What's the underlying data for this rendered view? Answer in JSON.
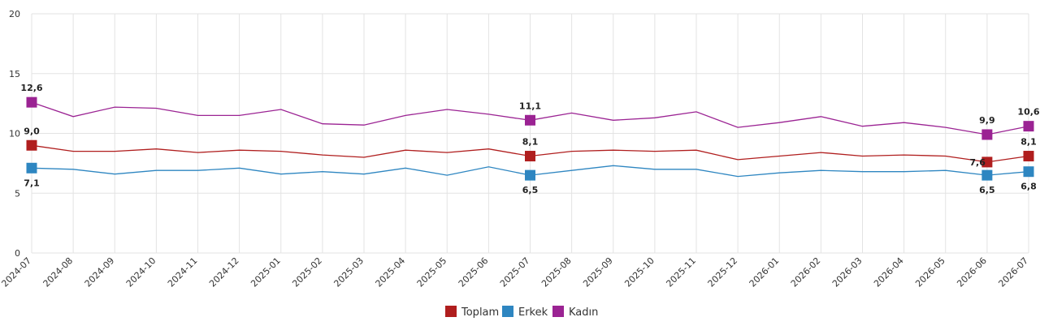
{
  "chart_data": {
    "type": "line",
    "categories": [
      "2024-07",
      "2024-08",
      "2024-09",
      "2024-10",
      "2024-11",
      "2024-12",
      "2025-01",
      "2025-02",
      "2025-03",
      "2025-04",
      "2025-05",
      "2025-06",
      "2025-07",
      "2025-08",
      "2025-09",
      "2025-10",
      "2025-11",
      "2025-12",
      "2026-01",
      "2026-02",
      "2026-03",
      "2026-04",
      "2026-05",
      "2026-06",
      "2026-07"
    ],
    "ylim": [
      0,
      20
    ],
    "yticks": [
      0,
      5,
      10,
      15,
      20
    ],
    "grid": true,
    "legend_position": "bottom-center",
    "series": [
      {
        "name": "Toplam",
        "color": "#b01e1e",
        "values": [
          9.0,
          8.5,
          8.5,
          8.7,
          8.4,
          8.6,
          8.5,
          8.2,
          8.0,
          8.6,
          8.4,
          8.7,
          8.1,
          8.5,
          8.6,
          8.5,
          8.6,
          7.8,
          8.1,
          8.4,
          8.1,
          8.2,
          8.1,
          7.6,
          8.1
        ],
        "markers": [
          0,
          12,
          23,
          24
        ],
        "labels": [
          {
            "index": 0,
            "text": "9,0",
            "pos": "above"
          },
          {
            "index": 12,
            "text": "8,1",
            "pos": "above"
          },
          {
            "index": 23,
            "text": "7,6",
            "pos": "left"
          },
          {
            "index": 24,
            "text": "8,1",
            "pos": "above"
          }
        ]
      },
      {
        "name": "Erkek",
        "color": "#2e86c1",
        "values": [
          7.1,
          7.0,
          6.6,
          6.9,
          6.9,
          7.1,
          6.6,
          6.8,
          6.6,
          7.1,
          6.5,
          7.2,
          6.5,
          6.9,
          7.3,
          7.0,
          7.0,
          6.4,
          6.7,
          6.9,
          6.8,
          6.8,
          6.9,
          6.5,
          6.8
        ],
        "markers": [
          0,
          12,
          23,
          24
        ],
        "labels": [
          {
            "index": 0,
            "text": "7,1",
            "pos": "below"
          },
          {
            "index": 12,
            "text": "6,5",
            "pos": "below"
          },
          {
            "index": 23,
            "text": "6,5",
            "pos": "below"
          },
          {
            "index": 24,
            "text": "6,8",
            "pos": "below"
          }
        ]
      },
      {
        "name": "Kadın",
        "color": "#9b2393",
        "values": [
          12.6,
          11.4,
          12.2,
          12.1,
          11.5,
          11.5,
          12.0,
          10.8,
          10.7,
          11.5,
          12.0,
          11.6,
          11.1,
          11.7,
          11.1,
          11.3,
          11.8,
          10.5,
          10.9,
          11.4,
          10.6,
          10.9,
          10.5,
          9.9,
          10.6
        ],
        "markers": [
          0,
          12,
          23,
          24
        ],
        "labels": [
          {
            "index": 0,
            "text": "12,6",
            "pos": "above"
          },
          {
            "index": 12,
            "text": "11,1",
            "pos": "above"
          },
          {
            "index": 23,
            "text": "9,9",
            "pos": "above"
          },
          {
            "index": 24,
            "text": "10,6",
            "pos": "above"
          }
        ]
      }
    ]
  }
}
